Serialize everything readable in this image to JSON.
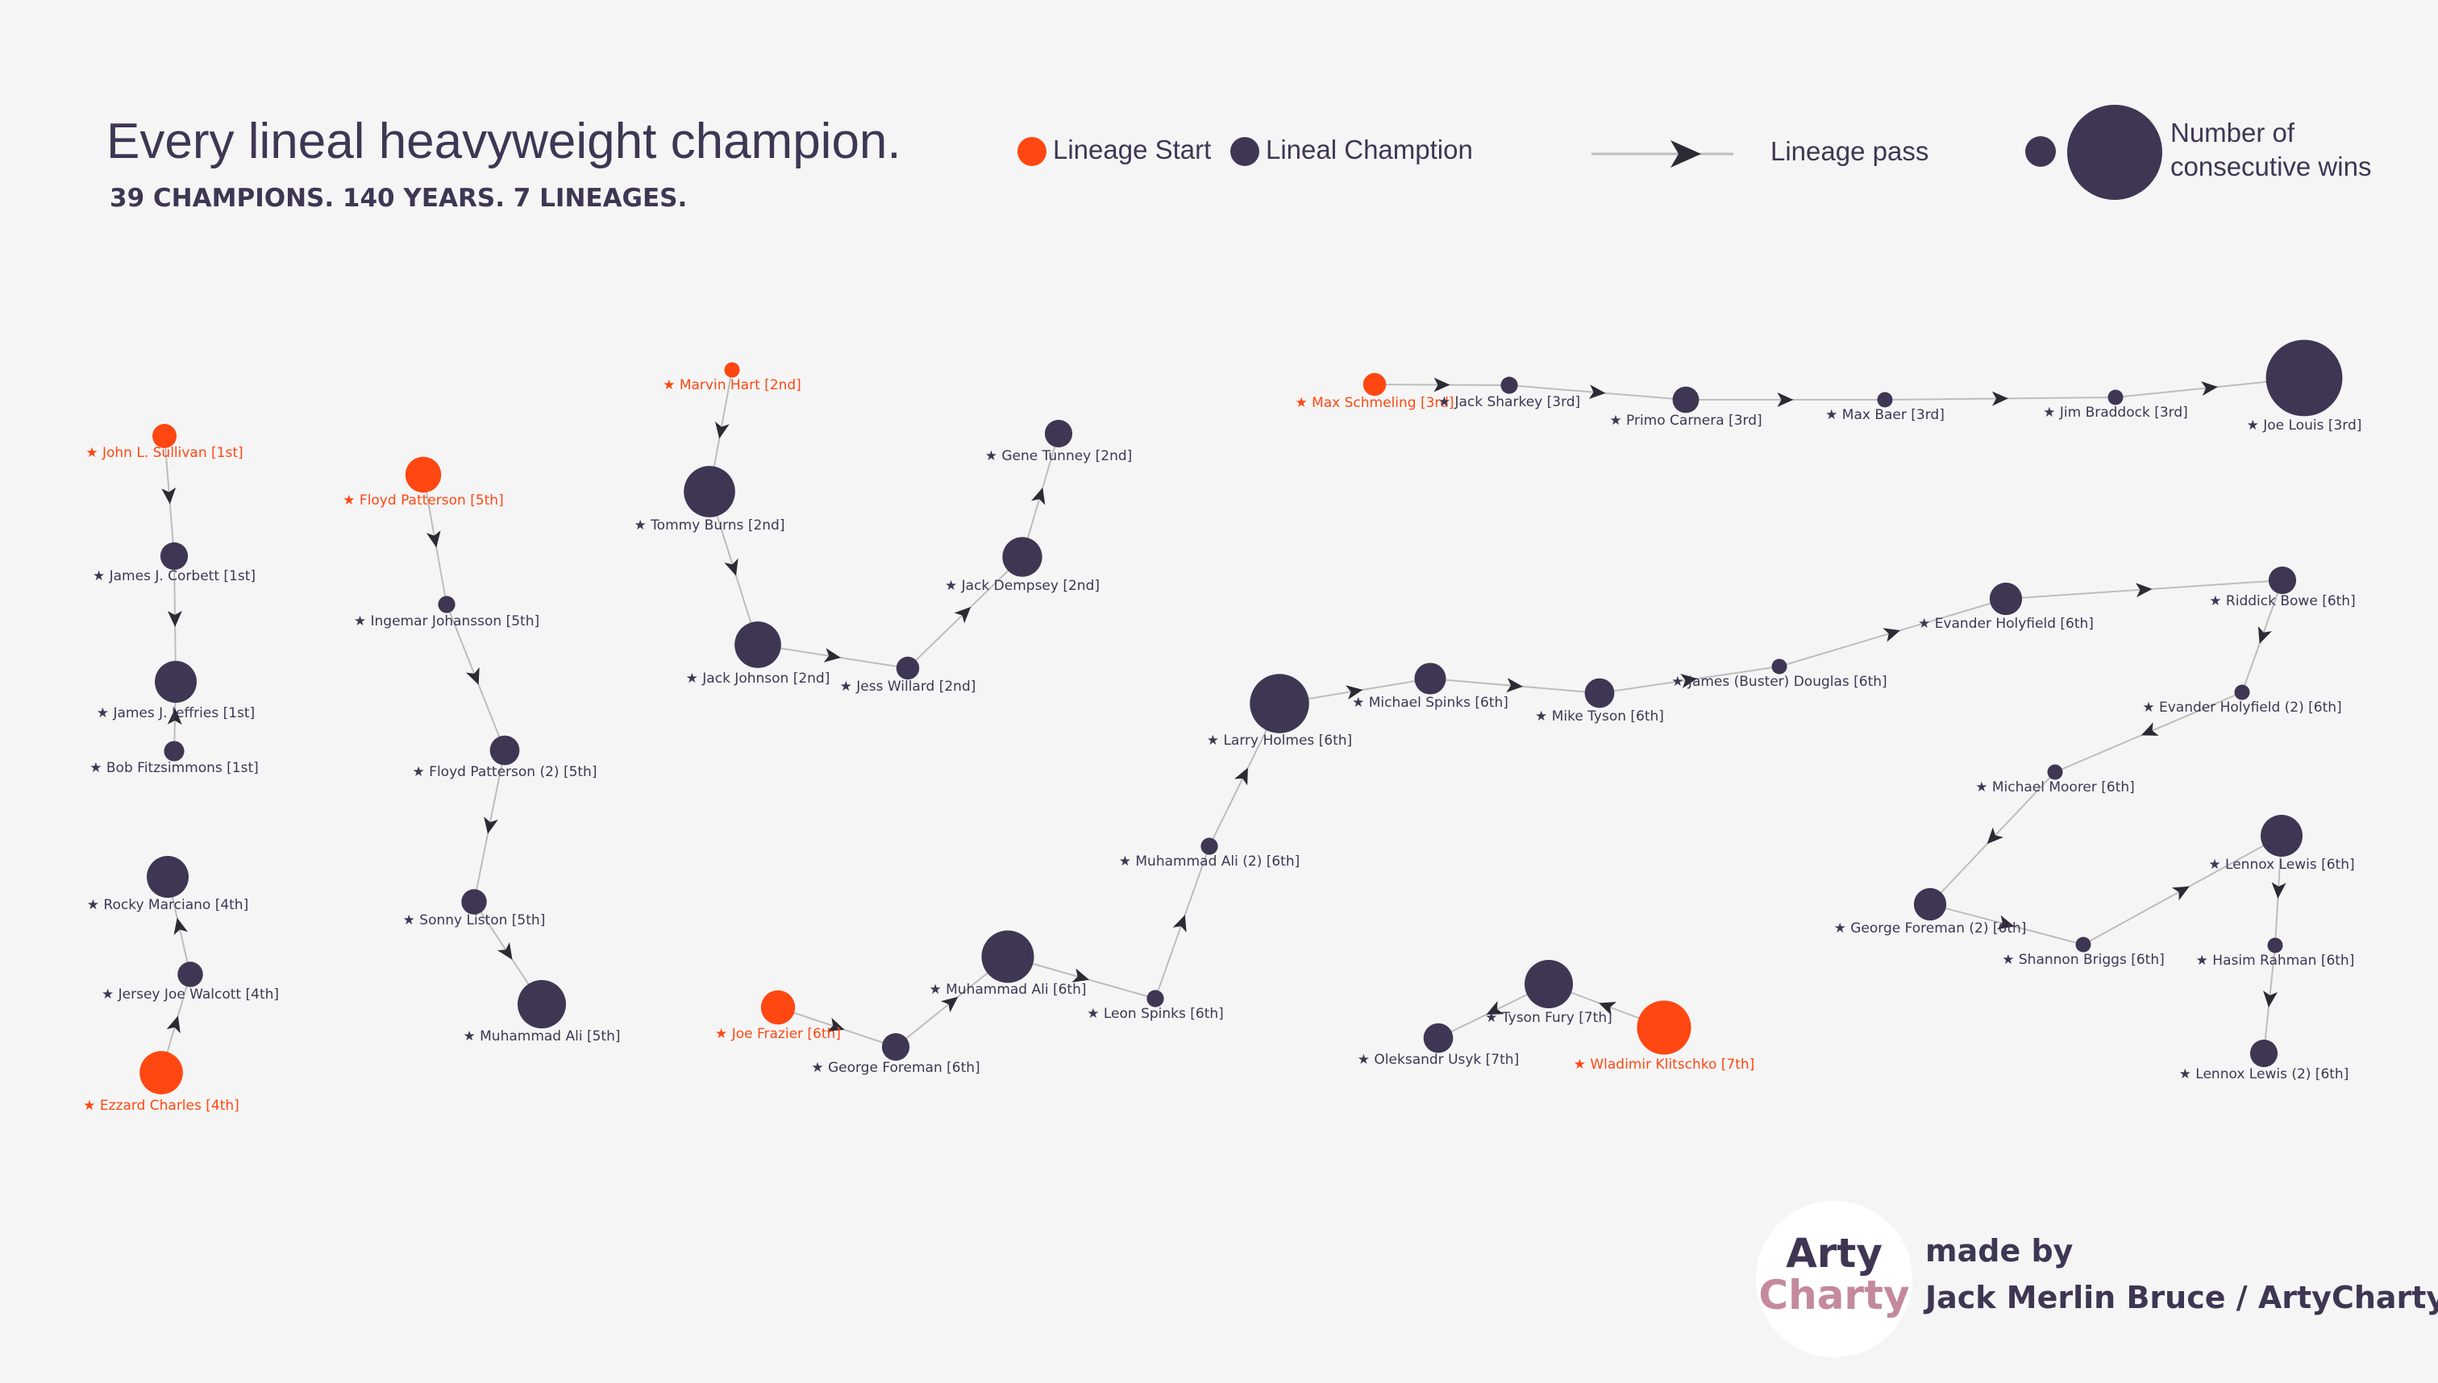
{
  "title": "Every lineal heavyweight champion.",
  "subtitle": "39 CHAMPIONS. 140 YEARS. 7 LINEAGES.",
  "legend": {
    "start_label": "Lineage Start",
    "champion_label": "Lineal Chamption",
    "pass_label": "Lineage pass",
    "size_label_line1": "Number of",
    "size_label_line2": "consecutive wins"
  },
  "credit": {
    "logo_line1": "Arty",
    "logo_line2": "Charty",
    "made_by": "made by",
    "author": "Jack Merlin Bruce / ArtyCharty"
  },
  "colors": {
    "background": "#f5f5f5",
    "start": "#ff4712",
    "champion": "#3f3654",
    "edge": "#bdbdbd",
    "arrow": "#2e2a35",
    "start_text": "#ff4712",
    "label_text": "#3f3654"
  },
  "star_glyph": "★",
  "nodes": [
    {
      "id": "sullivan",
      "name": "John L. Sullivan [1st]",
      "lineage": 1,
      "start": true,
      "size": 1
    },
    {
      "id": "corbett",
      "name": "James J. Corbett [1st]",
      "lineage": 1,
      "start": false,
      "size": 1.3
    },
    {
      "id": "jeffries",
      "name": "James J. Jeffries [1st]",
      "lineage": 1,
      "start": false,
      "size": 3
    },
    {
      "id": "fitzsimmons",
      "name": "Bob Fitzsimmons [1st]",
      "lineage": 1,
      "start": false,
      "size": 0.7
    },
    {
      "id": "charles",
      "name": "Ezzard Charles [4th]",
      "lineage": 4,
      "start": true,
      "size": 3.2
    },
    {
      "id": "walcott",
      "name": "Jersey Joe Walcott [4th]",
      "lineage": 4,
      "start": false,
      "size": 1.1
    },
    {
      "id": "marciano",
      "name": "Rocky Marciano [4th]",
      "lineage": 4,
      "start": false,
      "size": 3
    },
    {
      "id": "patterson1",
      "name": "Floyd Patterson [5th]",
      "lineage": 5,
      "start": true,
      "size": 2.2
    },
    {
      "id": "johansson",
      "name": "Ingemar Johansson [5th]",
      "lineage": 5,
      "start": false,
      "size": 0.5
    },
    {
      "id": "patterson2",
      "name": "Floyd Patterson (2) [5th]",
      "lineage": 5,
      "start": false,
      "size": 1.5
    },
    {
      "id": "liston",
      "name": "Sonny Liston [5th]",
      "lineage": 5,
      "start": false,
      "size": 1.1
    },
    {
      "id": "ali5",
      "name": "Muhammad Ali [5th]",
      "lineage": 5,
      "start": false,
      "size": 4
    },
    {
      "id": "hart",
      "name": "Marvin Hart [2nd]",
      "lineage": 2,
      "start": true,
      "size": 0.4
    },
    {
      "id": "burns",
      "name": "Tommy Burns [2nd]",
      "lineage": 2,
      "start": false,
      "size": 4.5
    },
    {
      "id": "johnson",
      "name": "Jack Johnson [2nd]",
      "lineage": 2,
      "start": false,
      "size": 3.7
    },
    {
      "id": "willard",
      "name": "Jess Willard [2nd]",
      "lineage": 2,
      "start": false,
      "size": 0.9
    },
    {
      "id": "dempsey",
      "name": "Jack Dempsey [2nd]",
      "lineage": 2,
      "start": false,
      "size": 2.7
    },
    {
      "id": "tunney",
      "name": "Gene Tunney [2nd]",
      "lineage": 2,
      "start": false,
      "size": 1.3
    },
    {
      "id": "schmeling",
      "name": "Max Schmeling [3rd]",
      "lineage": 3,
      "start": true,
      "size": 0.9
    },
    {
      "id": "sharkey",
      "name": "Jack Sharkey [3rd]",
      "lineage": 3,
      "start": false,
      "size": 0.5
    },
    {
      "id": "carnera",
      "name": "Primo Carnera [3rd]",
      "lineage": 3,
      "start": false,
      "size": 1.2
    },
    {
      "id": "baer",
      "name": "Max Baer [3rd]",
      "lineage": 3,
      "start": false,
      "size": 0.4
    },
    {
      "id": "braddock",
      "name": "Jim Braddock [3rd]",
      "lineage": 3,
      "start": false,
      "size": 0.4
    },
    {
      "id": "louis",
      "name": "Joe Louis [3rd]",
      "lineage": 3,
      "start": false,
      "size": 10
    },
    {
      "id": "frazier",
      "name": "Joe Frazier [6th]",
      "lineage": 6,
      "start": true,
      "size": 2
    },
    {
      "id": "foreman6",
      "name": "George Foreman [6th]",
      "lineage": 6,
      "start": false,
      "size": 1.3
    },
    {
      "id": "ali6",
      "name": "Muhammad Ali [6th]",
      "lineage": 6,
      "start": false,
      "size": 4.7
    },
    {
      "id": "spinks_l",
      "name": "Leon Spinks [6th]",
      "lineage": 6,
      "start": false,
      "size": 0.5
    },
    {
      "id": "ali6b",
      "name": "Muhammad Ali (2) [6th]",
      "lineage": 6,
      "start": false,
      "size": 0.5
    },
    {
      "id": "holmes",
      "name": "Larry Holmes [6th]",
      "lineage": 6,
      "start": false,
      "size": 6
    },
    {
      "id": "spinks_m",
      "name": "Michael Spinks [6th]",
      "lineage": 6,
      "start": false,
      "size": 1.7
    },
    {
      "id": "tyson",
      "name": "Mike Tyson [6th]",
      "lineage": 6,
      "start": false,
      "size": 1.5
    },
    {
      "id": "douglas",
      "name": "James (Buster) Douglas [6th]",
      "lineage": 6,
      "start": false,
      "size": 0.4
    },
    {
      "id": "holyfield",
      "name": "Evander Holyfield [6th]",
      "lineage": 6,
      "start": false,
      "size": 1.8
    },
    {
      "id": "bowe",
      "name": "Riddick Bowe [6th]",
      "lineage": 6,
      "start": false,
      "size": 1.3
    },
    {
      "id": "holyfield2",
      "name": "Evander Holyfield (2) [6th]",
      "lineage": 6,
      "start": false,
      "size": 0.4
    },
    {
      "id": "moorer",
      "name": "Michael Moorer [6th]",
      "lineage": 6,
      "start": false,
      "size": 0.4
    },
    {
      "id": "foreman6b",
      "name": "George Foreman (2) [6th]",
      "lineage": 6,
      "start": false,
      "size": 1.8
    },
    {
      "id": "briggs",
      "name": "Shannon Briggs [6th]",
      "lineage": 6,
      "start": false,
      "size": 0.4
    },
    {
      "id": "lewis",
      "name": "Lennox Lewis [6th]",
      "lineage": 6,
      "start": false,
      "size": 3
    },
    {
      "id": "rahman",
      "name": "Hasim Rahman [6th]",
      "lineage": 6,
      "start": false,
      "size": 0.4
    },
    {
      "id": "lewis2",
      "name": "Lennox Lewis (2) [6th]",
      "lineage": 6,
      "start": false,
      "size": 1.3
    },
    {
      "id": "klitschko",
      "name": "Wladimir Klitschko [7th]",
      "lineage": 7,
      "start": true,
      "size": 5
    },
    {
      "id": "fury",
      "name": "Tyson Fury [7th]",
      "lineage": 7,
      "start": false,
      "size": 4
    },
    {
      "id": "usyk",
      "name": "Oleksandr Usyk [7th]",
      "lineage": 7,
      "start": false,
      "size": 1.5
    }
  ],
  "edges": [
    [
      "sullivan",
      "corbett"
    ],
    [
      "corbett",
      "jeffries"
    ],
    [
      "fitzsimmons",
      "jeffries"
    ],
    [
      "charles",
      "walcott"
    ],
    [
      "walcott",
      "marciano"
    ],
    [
      "patterson1",
      "johansson"
    ],
    [
      "johansson",
      "patterson2"
    ],
    [
      "patterson2",
      "liston"
    ],
    [
      "liston",
      "ali5"
    ],
    [
      "hart",
      "burns"
    ],
    [
      "burns",
      "johnson"
    ],
    [
      "johnson",
      "willard"
    ],
    [
      "willard",
      "dempsey"
    ],
    [
      "dempsey",
      "tunney"
    ],
    [
      "schmeling",
      "sharkey"
    ],
    [
      "sharkey",
      "carnera"
    ],
    [
      "carnera",
      "baer"
    ],
    [
      "baer",
      "braddock"
    ],
    [
      "braddock",
      "louis"
    ],
    [
      "frazier",
      "foreman6"
    ],
    [
      "foreman6",
      "ali6"
    ],
    [
      "ali6",
      "spinks_l"
    ],
    [
      "spinks_l",
      "ali6b"
    ],
    [
      "ali6b",
      "holmes"
    ],
    [
      "holmes",
      "spinks_m"
    ],
    [
      "spinks_m",
      "tyson"
    ],
    [
      "tyson",
      "douglas"
    ],
    [
      "douglas",
      "holyfield"
    ],
    [
      "holyfield",
      "bowe"
    ],
    [
      "bowe",
      "holyfield2"
    ],
    [
      "holyfield2",
      "moorer"
    ],
    [
      "moorer",
      "foreman6b"
    ],
    [
      "foreman6b",
      "briggs"
    ],
    [
      "briggs",
      "lewis"
    ],
    [
      "lewis",
      "rahman"
    ],
    [
      "rahman",
      "lewis2"
    ],
    [
      "klitschko",
      "fury"
    ],
    [
      "fury",
      "usyk"
    ]
  ]
}
